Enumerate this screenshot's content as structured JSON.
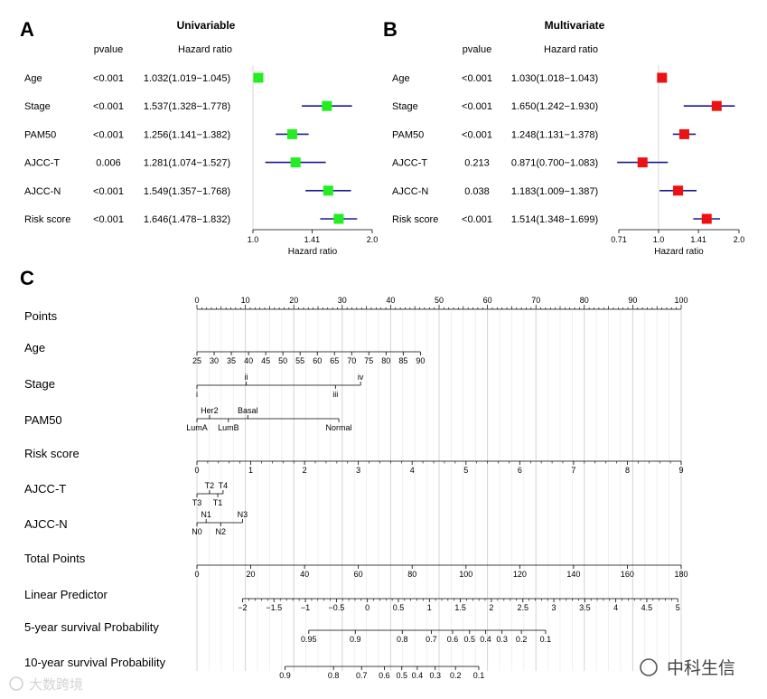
{
  "panels": {
    "A": {
      "letter": "A",
      "title": "Univariable"
    },
    "B": {
      "letter": "B",
      "title": "Multivariate"
    },
    "C": {
      "letter": "C"
    }
  },
  "watermarks": {
    "left": "大数跨境",
    "right": "中科生信"
  },
  "chart_data": [
    {
      "type": "forest",
      "panel": "A",
      "title": "Univariable",
      "headers": {
        "pvalue": "pvalue",
        "hr": "Hazard ratio"
      },
      "xlabel": "Hazard ratio",
      "scale": "log",
      "xlim": [
        1.0,
        2.0
      ],
      "ticks": [
        1.0,
        1.41,
        2.0
      ],
      "tick_labels": [
        "1.0",
        "1.41",
        "2.0"
      ],
      "reference_line": 1.0,
      "marker_color": "#22ee22",
      "ci_color": "#1a1a8c",
      "rows": [
        {
          "label": "Age",
          "pvalue": "<0.001",
          "hr_text": "1.032(1.019−1.045)",
          "hr": 1.032,
          "lo": 1.019,
          "hi": 1.045
        },
        {
          "label": "Stage",
          "pvalue": "<0.001",
          "hr_text": "1.537(1.328−1.778)",
          "hr": 1.537,
          "lo": 1.328,
          "hi": 1.778
        },
        {
          "label": "PAM50",
          "pvalue": "<0.001",
          "hr_text": "1.256(1.141−1.382)",
          "hr": 1.256,
          "lo": 1.141,
          "hi": 1.382
        },
        {
          "label": "AJCC-T",
          "pvalue": "0.006",
          "hr_text": "1.281(1.074−1.527)",
          "hr": 1.281,
          "lo": 1.074,
          "hi": 1.527
        },
        {
          "label": "AJCC-N",
          "pvalue": "<0.001",
          "hr_text": "1.549(1.357−1.768)",
          "hr": 1.549,
          "lo": 1.357,
          "hi": 1.768
        },
        {
          "label": "Risk score",
          "pvalue": "<0.001",
          "hr_text": "1.646(1.478−1.832)",
          "hr": 1.646,
          "lo": 1.478,
          "hi": 1.832
        }
      ]
    },
    {
      "type": "forest",
      "panel": "B",
      "title": "Multivariate",
      "headers": {
        "pvalue": "pvalue",
        "hr": "Hazard ratio"
      },
      "xlabel": "Hazard ratio",
      "scale": "log",
      "xlim": [
        0.71,
        2.0
      ],
      "ticks": [
        0.71,
        1.0,
        1.41,
        2.0
      ],
      "tick_labels": [
        "0.71",
        "1.0",
        "1.41",
        "2.0"
      ],
      "reference_line": 1.0,
      "marker_color": "#ee1111",
      "ci_color": "#1a1a8c",
      "rows": [
        {
          "label": "Age",
          "pvalue": "<0.001",
          "hr_text": "1.030(1.018−1.043)",
          "hr": 1.03,
          "lo": 1.018,
          "hi": 1.043
        },
        {
          "label": "Stage",
          "pvalue": "<0.001",
          "hr_text": "1.650(1.242−1.930)",
          "hr": 1.65,
          "lo": 1.242,
          "hi": 1.93
        },
        {
          "label": "PAM50",
          "pvalue": "<0.001",
          "hr_text": "1.248(1.131−1.378)",
          "hr": 1.248,
          "lo": 1.131,
          "hi": 1.378
        },
        {
          "label": "AJCC-T",
          "pvalue": "0.213",
          "hr_text": "0.871(0.700−1.083)",
          "hr": 0.871,
          "lo": 0.7,
          "hi": 1.083
        },
        {
          "label": "AJCC-N",
          "pvalue": "0.038",
          "hr_text": "1.183(1.009−1.387)",
          "hr": 1.183,
          "lo": 1.009,
          "hi": 1.387
        },
        {
          "label": "Risk score",
          "pvalue": "<0.001",
          "hr_text": "1.514(1.348−1.699)",
          "hr": 1.514,
          "lo": 1.348,
          "hi": 1.699
        }
      ]
    },
    {
      "type": "nomogram",
      "panel": "C",
      "points_scale": [
        0,
        100
      ],
      "rows": [
        {
          "name": "Points",
          "kind": "points",
          "ticks": [
            {
              "v": 0,
              "label": "0"
            },
            {
              "v": 10,
              "label": "10"
            },
            {
              "v": 20,
              "label": "20"
            },
            {
              "v": 30,
              "label": "30"
            },
            {
              "v": 40,
              "label": "40"
            },
            {
              "v": 50,
              "label": "50"
            },
            {
              "v": 60,
              "label": "60"
            },
            {
              "v": 70,
              "label": "70"
            },
            {
              "v": 80,
              "label": "80"
            },
            {
              "v": 90,
              "label": "90"
            },
            {
              "v": 100,
              "label": "100"
            }
          ]
        },
        {
          "name": "Age",
          "kind": "scale",
          "labels_side": "below",
          "ticks": [
            {
              "v": 25,
              "label": "25",
              "pt": 0
            },
            {
              "v": 30,
              "label": "30",
              "pt": 3.55
            },
            {
              "v": 35,
              "label": "35",
              "pt": 7.1
            },
            {
              "v": 40,
              "label": "40",
              "pt": 10.65
            },
            {
              "v": 45,
              "label": "45",
              "pt": 14.2
            },
            {
              "v": 50,
              "label": "50",
              "pt": 17.75
            },
            {
              "v": 55,
              "label": "55",
              "pt": 21.3
            },
            {
              "v": 60,
              "label": "60",
              "pt": 24.85
            },
            {
              "v": 65,
              "label": "65",
              "pt": 28.4
            },
            {
              "v": 70,
              "label": "70",
              "pt": 31.95
            },
            {
              "v": 75,
              "label": "75",
              "pt": 35.5
            },
            {
              "v": 80,
              "label": "80",
              "pt": 39.05
            },
            {
              "v": 85,
              "label": "85",
              "pt": 42.6
            },
            {
              "v": 90,
              "label": "90",
              "pt": 46.15
            }
          ]
        },
        {
          "name": "Stage",
          "kind": "categorical",
          "ticks": [
            {
              "label": "i",
              "pt": 0,
              "side": "below"
            },
            {
              "label": "ii",
              "pt": 10.2,
              "side": "above"
            },
            {
              "label": "iii",
              "pt": 28.6,
              "side": "below"
            },
            {
              "label": "iv",
              "pt": 33.8,
              "side": "above"
            }
          ]
        },
        {
          "name": "PAM50",
          "kind": "categorical",
          "ticks": [
            {
              "label": "LumA",
              "pt": 0,
              "side": "below"
            },
            {
              "label": "Her2",
              "pt": 2.6,
              "side": "above"
            },
            {
              "label": "LumB",
              "pt": 6.5,
              "side": "below"
            },
            {
              "label": "Basal",
              "pt": 10.5,
              "side": "above"
            },
            {
              "label": "Normal",
              "pt": 29.3,
              "side": "below"
            }
          ]
        },
        {
          "name": "Risk score",
          "kind": "scale",
          "labels_side": "below",
          "minor": true,
          "ticks": [
            {
              "v": 0,
              "label": "0",
              "pt": 0
            },
            {
              "v": 1,
              "label": "1",
              "pt": 11.11
            },
            {
              "v": 2,
              "label": "2",
              "pt": 22.22
            },
            {
              "v": 3,
              "label": "3",
              "pt": 33.33
            },
            {
              "v": 4,
              "label": "4",
              "pt": 44.44
            },
            {
              "v": 5,
              "label": "5",
              "pt": 55.56
            },
            {
              "v": 6,
              "label": "6",
              "pt": 66.67
            },
            {
              "v": 7,
              "label": "7",
              "pt": 77.78
            },
            {
              "v": 8,
              "label": "8",
              "pt": 88.89
            },
            {
              "v": 9,
              "label": "9",
              "pt": 100
            }
          ]
        },
        {
          "name": "AJCC-T",
          "kind": "categorical",
          "ticks": [
            {
              "label": "T3",
              "pt": 0,
              "side": "below"
            },
            {
              "label": "T2",
              "pt": 2.6,
              "side": "above"
            },
            {
              "label": "T1",
              "pt": 4.3,
              "side": "below"
            },
            {
              "label": "T4",
              "pt": 5.4,
              "side": "above"
            }
          ]
        },
        {
          "name": "AJCC-N",
          "kind": "categorical",
          "ticks": [
            {
              "label": "N0",
              "pt": 0,
              "side": "below"
            },
            {
              "label": "N1",
              "pt": 1.9,
              "side": "above"
            },
            {
              "label": "N2",
              "pt": 4.9,
              "side": "below"
            },
            {
              "label": "N3",
              "pt": 9.4,
              "side": "above"
            }
          ]
        },
        {
          "name": "Total Points",
          "kind": "scale",
          "labels_side": "below",
          "ticks": [
            {
              "v": 0,
              "label": "0",
              "pt": 0
            },
            {
              "v": 20,
              "label": "20",
              "pt": 11.11
            },
            {
              "v": 40,
              "label": "40",
              "pt": 22.22
            },
            {
              "v": 60,
              "label": "60",
              "pt": 33.33
            },
            {
              "v": 80,
              "label": "80",
              "pt": 44.44
            },
            {
              "v": 100,
              "label": "100",
              "pt": 55.56
            },
            {
              "v": 120,
              "label": "120",
              "pt": 66.67
            },
            {
              "v": 140,
              "label": "140",
              "pt": 77.78
            },
            {
              "v": 160,
              "label": "160",
              "pt": 88.89
            },
            {
              "v": 180,
              "label": "180",
              "pt": 100
            }
          ]
        },
        {
          "name": "Linear Predictor",
          "kind": "scale",
          "labels_side": "below",
          "minor": true,
          "ticks": [
            {
              "v": -2,
              "label": "−2",
              "pt": 9.4
            },
            {
              "v": -1.5,
              "label": "−1.5",
              "pt": 15.9
            },
            {
              "v": -1,
              "label": "−1",
              "pt": 22.4
            },
            {
              "v": -0.5,
              "label": "−0.5",
              "pt": 28.8
            },
            {
              "v": 0,
              "label": "0",
              "pt": 35.2
            },
            {
              "v": 0.5,
              "label": "0.5",
              "pt": 41.6
            },
            {
              "v": 1,
              "label": "1",
              "pt": 48.0
            },
            {
              "v": 1.5,
              "label": "1.5",
              "pt": 54.4
            },
            {
              "v": 2,
              "label": "2",
              "pt": 60.8
            },
            {
              "v": 2.5,
              "label": "2.5",
              "pt": 67.3
            },
            {
              "v": 3,
              "label": "3",
              "pt": 73.7
            },
            {
              "v": 3.5,
              "label": "3.5",
              "pt": 80.1
            },
            {
              "v": 4,
              "label": "4",
              "pt": 86.5
            },
            {
              "v": 4.5,
              "label": "4.5",
              "pt": 92.9
            },
            {
              "v": 5,
              "label": "5",
              "pt": 99.3
            }
          ]
        },
        {
          "name": "5-year survival Probability",
          "kind": "scale",
          "labels_side": "below",
          "ticks": [
            {
              "v": 0.95,
              "label": "0.95",
              "pt": 23.1
            },
            {
              "v": 0.9,
              "label": "0.9",
              "pt": 32.7
            },
            {
              "v": 0.8,
              "label": "0.8",
              "pt": 42.4
            },
            {
              "v": 0.7,
              "label": "0.7",
              "pt": 48.4
            },
            {
              "v": 0.6,
              "label": "0.6",
              "pt": 52.8
            },
            {
              "v": 0.5,
              "label": "0.5",
              "pt": 56.3
            },
            {
              "v": 0.4,
              "label": "0.4",
              "pt": 59.6
            },
            {
              "v": 0.3,
              "label": "0.3",
              "pt": 63.0
            },
            {
              "v": 0.2,
              "label": "0.2",
              "pt": 67.0
            },
            {
              "v": 0.1,
              "label": "0.1",
              "pt": 72.0
            }
          ]
        },
        {
          "name": "10-year survival Probability",
          "kind": "scale",
          "labels_side": "below",
          "ticks": [
            {
              "v": 0.9,
              "label": "0.9",
              "pt": 18.2
            },
            {
              "v": 0.8,
              "label": "0.8",
              "pt": 28.2
            },
            {
              "v": 0.7,
              "label": "0.7",
              "pt": 34.0
            },
            {
              "v": 0.6,
              "label": "0.6",
              "pt": 38.7
            },
            {
              "v": 0.5,
              "label": "0.5",
              "pt": 42.3
            },
            {
              "v": 0.4,
              "label": "0.4",
              "pt": 45.5
            },
            {
              "v": 0.3,
              "label": "0.3",
              "pt": 49.2
            },
            {
              "v": 0.2,
              "label": "0.2",
              "pt": 53.4
            },
            {
              "v": 0.1,
              "label": "0.1",
              "pt": 58.2
            }
          ]
        }
      ]
    }
  ]
}
